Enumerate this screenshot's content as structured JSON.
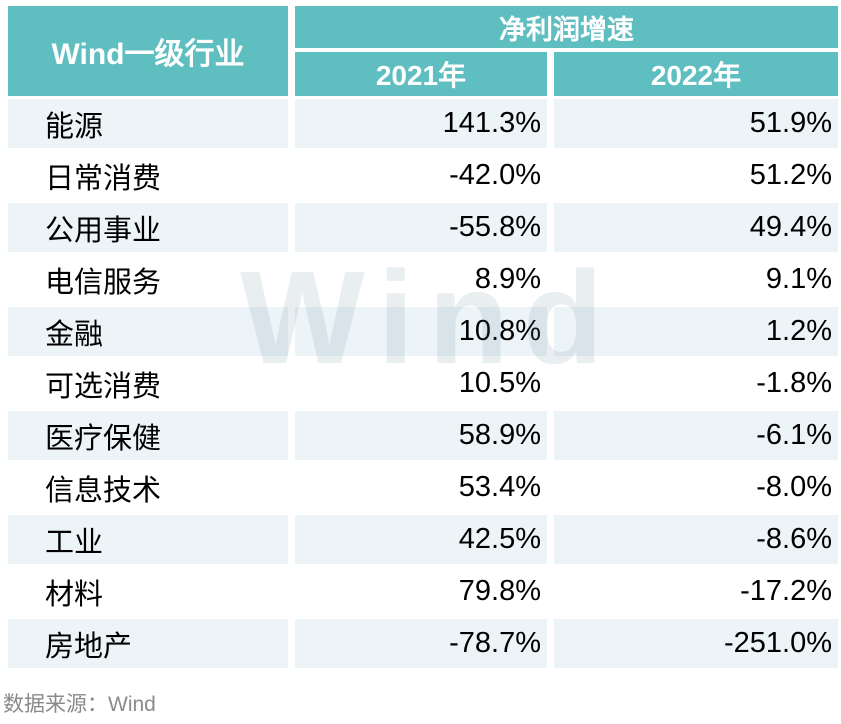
{
  "chart_data": {
    "type": "table",
    "title": "净利润增速",
    "columns": [
      "Wind一级行业",
      "2021年",
      "2022年"
    ],
    "unit": "%",
    "rows": [
      [
        "能源",
        141.3,
        51.9
      ],
      [
        "日常消费",
        -42.0,
        51.2
      ],
      [
        "公用事业",
        -55.8,
        49.4
      ],
      [
        "电信服务",
        8.9,
        9.1
      ],
      [
        "金融",
        10.8,
        1.2
      ],
      [
        "可选消费",
        10.5,
        -1.8
      ],
      [
        "医疗保健",
        58.9,
        -6.1
      ],
      [
        "信息技术",
        53.4,
        -8.0
      ],
      [
        "工业",
        42.5,
        -8.6
      ],
      [
        "材料",
        79.8,
        -17.2
      ],
      [
        "房地产",
        -78.7,
        -251.0
      ]
    ]
  },
  "table": {
    "industry_header": "Wind一级行业",
    "group_header": "净利润增速",
    "year_2021": "2021年",
    "year_2022": "2022年",
    "rows": [
      {
        "industry": "能源",
        "y2021": "141.3%",
        "y2022": "51.9%"
      },
      {
        "industry": "日常消费",
        "y2021": "-42.0%",
        "y2022": "51.2%"
      },
      {
        "industry": "公用事业",
        "y2021": "-55.8%",
        "y2022": "49.4%"
      },
      {
        "industry": "电信服务",
        "y2021": "8.9%",
        "y2022": "9.1%"
      },
      {
        "industry": "金融",
        "y2021": "10.8%",
        "y2022": "1.2%"
      },
      {
        "industry": "可选消费",
        "y2021": "10.5%",
        "y2022": "-1.8%"
      },
      {
        "industry": "医疗保健",
        "y2021": "58.9%",
        "y2022": "-6.1%"
      },
      {
        "industry": "信息技术",
        "y2021": "53.4%",
        "y2022": "-8.0%"
      },
      {
        "industry": "工业",
        "y2021": "42.5%",
        "y2022": "-8.6%"
      },
      {
        "industry": "材料",
        "y2021": "79.8%",
        "y2022": "-17.2%"
      },
      {
        "industry": "房地产",
        "y2021": "-78.7%",
        "y2022": "-251.0%"
      }
    ]
  },
  "watermark": "Wind",
  "footer": {
    "source_label": "数据来源：Wind"
  },
  "colors": {
    "header_teal": "#5FBFC0",
    "row_stripe": "#EDF4F7",
    "header_text": "#FFFFFF",
    "body_text": "#000000",
    "footer_gray": "#8A8A8A",
    "watermark_overlay": "rgba(100,135,155,0.14)"
  }
}
